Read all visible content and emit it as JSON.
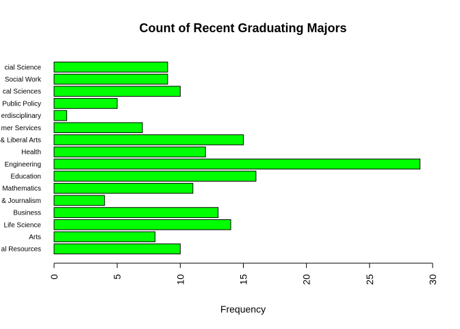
{
  "chart_data": {
    "type": "bar",
    "orientation": "horizontal",
    "title": "Count of Recent Graduating Majors",
    "xlabel": "Frequency",
    "ylabel": "",
    "categories": [
      "al Resources",
      "Arts",
      "Life Science",
      "Business",
      "& Journalism",
      "Mathematics",
      "Education",
      "Engineering",
      "Health",
      "& Liberal Arts",
      "mer Services",
      "erdisciplinary",
      "Public Policy",
      "cal Sciences",
      "Social Work",
      "cial Science"
    ],
    "values": [
      10,
      8,
      14,
      13,
      4,
      11,
      16,
      29,
      12,
      15,
      7,
      1,
      5,
      10,
      9,
      9
    ],
    "xlim": [
      0,
      30
    ],
    "xticks": [
      "0",
      "5",
      "10",
      "15",
      "20",
      "25",
      "30"
    ],
    "bar_color": "#00ff00",
    "bar_border": "#000000",
    "grid": false
  }
}
